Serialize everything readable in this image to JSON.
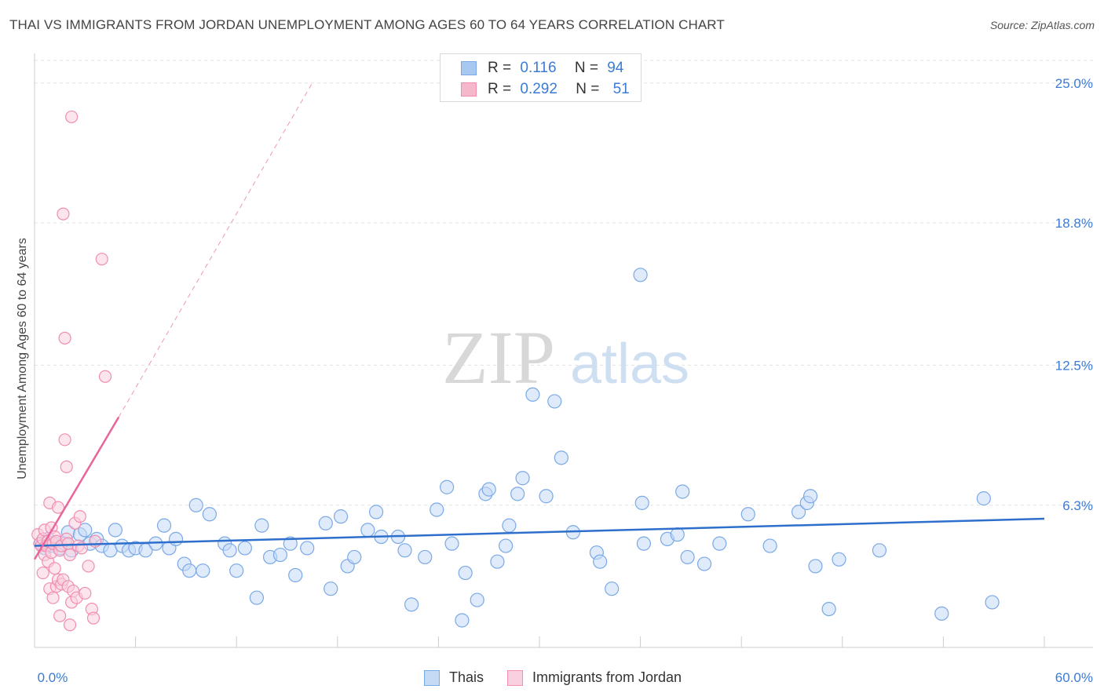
{
  "header": {
    "title": "THAI VS IMMIGRANTS FROM JORDAN UNEMPLOYMENT AMONG AGES 60 TO 64 YEARS CORRELATION CHART",
    "source": "Source: ZipAtlas.com"
  },
  "watermark": {
    "zip": "ZIP",
    "atlas": "atlas"
  },
  "legend": {
    "rows": [
      {
        "r_label": "R =",
        "r_value": "0.116",
        "n_label": "N =",
        "n_value": "94",
        "color": "#a9c8f0"
      },
      {
        "r_label": "R =",
        "r_value": "0.292",
        "n_label": "N =",
        "n_value": "51",
        "color": "#f5b8cb"
      }
    ]
  },
  "chart_data": {
    "type": "scatter",
    "title": "THAI VS IMMIGRANTS FROM JORDAN UNEMPLOYMENT AMONG AGES 60 TO 64 YEARS CORRELATION CHART",
    "xlabel": "",
    "ylabel": "Unemployment Among Ages 60 to 64 years",
    "xlim": [
      0,
      60
    ],
    "ylim": [
      0,
      26
    ],
    "x_tick_labels": [
      "0.0%",
      "60.0%"
    ],
    "y_tick_values": [
      6.3,
      12.5,
      18.8,
      25.0
    ],
    "y_tick_labels": [
      "6.3%",
      "12.5%",
      "18.8%",
      "25.0%"
    ],
    "grid": true,
    "series": [
      {
        "name": "Thais",
        "color": "#7aa9e6",
        "fill": "#c5daf5",
        "trend": {
          "x0": 0,
          "y0": 4.5,
          "x1": 60,
          "y1": 5.7,
          "color": "#2f6fcc"
        },
        "points": [
          [
            0.4,
            4.6
          ],
          [
            0.6,
            4.4
          ],
          [
            0.8,
            4.8
          ],
          [
            1.0,
            4.5
          ],
          [
            1.2,
            4.6
          ],
          [
            1.5,
            4.4
          ],
          [
            1.8,
            4.6
          ],
          [
            2.0,
            5.1
          ],
          [
            2.2,
            4.3
          ],
          [
            2.7,
            5.0
          ],
          [
            3.0,
            5.2
          ],
          [
            3.3,
            4.6
          ],
          [
            3.7,
            4.8
          ],
          [
            4.0,
            4.5
          ],
          [
            4.5,
            4.3
          ],
          [
            4.8,
            5.2
          ],
          [
            5.2,
            4.5
          ],
          [
            5.6,
            4.3
          ],
          [
            6.0,
            4.4
          ],
          [
            6.6,
            4.3
          ],
          [
            7.2,
            4.6
          ],
          [
            7.7,
            5.4
          ],
          [
            8.0,
            4.4
          ],
          [
            8.4,
            4.8
          ],
          [
            8.9,
            3.7
          ],
          [
            9.2,
            3.4
          ],
          [
            9.6,
            6.3
          ],
          [
            10.0,
            3.4
          ],
          [
            10.4,
            5.9
          ],
          [
            11.3,
            4.6
          ],
          [
            11.6,
            4.3
          ],
          [
            12.0,
            3.4
          ],
          [
            12.5,
            4.4
          ],
          [
            13.2,
            2.2
          ],
          [
            13.5,
            5.4
          ],
          [
            14.0,
            4.0
          ],
          [
            14.6,
            4.1
          ],
          [
            15.2,
            4.6
          ],
          [
            15.5,
            3.2
          ],
          [
            16.2,
            4.4
          ],
          [
            17.3,
            5.5
          ],
          [
            17.6,
            2.6
          ],
          [
            18.2,
            5.8
          ],
          [
            18.6,
            3.6
          ],
          [
            19.0,
            4.0
          ],
          [
            19.8,
            5.2
          ],
          [
            20.3,
            6.0
          ],
          [
            20.6,
            4.9
          ],
          [
            21.6,
            4.9
          ],
          [
            22.0,
            4.3
          ],
          [
            22.4,
            1.9
          ],
          [
            23.2,
            4.0
          ],
          [
            23.9,
            6.1
          ],
          [
            24.5,
            7.1
          ],
          [
            24.8,
            4.6
          ],
          [
            25.4,
            1.2
          ],
          [
            25.6,
            3.3
          ],
          [
            26.3,
            2.1
          ],
          [
            26.8,
            6.8
          ],
          [
            27.0,
            7.0
          ],
          [
            27.5,
            3.8
          ],
          [
            28.0,
            4.5
          ],
          [
            28.2,
            5.4
          ],
          [
            28.7,
            6.8
          ],
          [
            29.0,
            7.5
          ],
          [
            29.6,
            11.2
          ],
          [
            30.4,
            6.7
          ],
          [
            30.9,
            10.9
          ],
          [
            31.3,
            8.4
          ],
          [
            32.0,
            5.1
          ],
          [
            33.4,
            4.2
          ],
          [
            33.6,
            3.8
          ],
          [
            34.3,
            2.6
          ],
          [
            36.0,
            16.5
          ],
          [
            36.1,
            6.4
          ],
          [
            36.2,
            4.6
          ],
          [
            37.6,
            4.8
          ],
          [
            38.2,
            5.0
          ],
          [
            38.5,
            6.9
          ],
          [
            38.8,
            4.0
          ],
          [
            39.8,
            3.7
          ],
          [
            40.7,
            4.6
          ],
          [
            42.4,
            5.9
          ],
          [
            43.7,
            4.5
          ],
          [
            45.4,
            6.0
          ],
          [
            45.9,
            6.4
          ],
          [
            46.1,
            6.7
          ],
          [
            46.4,
            3.6
          ],
          [
            56.4,
            6.6
          ],
          [
            56.9,
            2.0
          ],
          [
            47.2,
            1.7
          ],
          [
            47.8,
            3.9
          ],
          [
            50.2,
            4.3
          ],
          [
            53.9,
            1.5
          ]
        ]
      },
      {
        "name": "Immigrants from Jordan",
        "color": "#f08db0",
        "fill": "#f9d0df",
        "trend": {
          "x0": 0,
          "y0": 3.9,
          "x1": 5.0,
          "y1": 10.2,
          "dash_x1": 16.5,
          "dash_y1": 25.0,
          "color": "#e8669a"
        },
        "points": [
          [
            0.2,
            5.0
          ],
          [
            0.3,
            4.6
          ],
          [
            0.4,
            4.5
          ],
          [
            0.5,
            4.8
          ],
          [
            0.5,
            3.3
          ],
          [
            0.6,
            4.1
          ],
          [
            0.6,
            5.2
          ],
          [
            0.7,
            4.5
          ],
          [
            0.8,
            4.7
          ],
          [
            0.8,
            3.8
          ],
          [
            0.9,
            2.6
          ],
          [
            0.9,
            6.4
          ],
          [
            1.0,
            5.3
          ],
          [
            1.0,
            4.2
          ],
          [
            1.1,
            4.6
          ],
          [
            1.1,
            2.2
          ],
          [
            1.2,
            4.9
          ],
          [
            1.2,
            3.5
          ],
          [
            1.3,
            2.7
          ],
          [
            1.3,
            4.7
          ],
          [
            1.4,
            6.2
          ],
          [
            1.4,
            3.0
          ],
          [
            1.5,
            4.3
          ],
          [
            1.5,
            1.4
          ],
          [
            1.6,
            2.8
          ],
          [
            1.6,
            4.5
          ],
          [
            1.7,
            3.0
          ],
          [
            1.7,
            19.2
          ],
          [
            1.8,
            13.7
          ],
          [
            1.8,
            9.2
          ],
          [
            1.9,
            8.0
          ],
          [
            1.9,
            4.8
          ],
          [
            2.0,
            2.7
          ],
          [
            2.0,
            4.6
          ],
          [
            2.1,
            1.0
          ],
          [
            2.1,
            4.1
          ],
          [
            2.2,
            23.5
          ],
          [
            2.2,
            2.0
          ],
          [
            2.3,
            2.5
          ],
          [
            2.4,
            5.5
          ],
          [
            2.5,
            2.2
          ],
          [
            2.6,
            4.5
          ],
          [
            2.7,
            5.8
          ],
          [
            2.8,
            4.4
          ],
          [
            3.0,
            2.4
          ],
          [
            3.2,
            3.6
          ],
          [
            3.4,
            1.7
          ],
          [
            3.5,
            1.3
          ],
          [
            3.6,
            4.7
          ],
          [
            4.0,
            17.2
          ],
          [
            4.2,
            12.0
          ]
        ]
      }
    ]
  },
  "bottom_legend": {
    "items": [
      "Thais",
      "Immigrants from Jordan"
    ]
  }
}
